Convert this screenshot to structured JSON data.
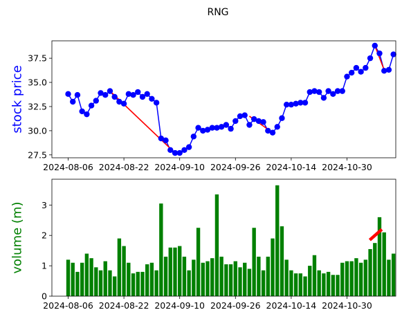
{
  "title": "RNG",
  "colors": {
    "price_line": "#0000ff",
    "price_marker": "#0000ff",
    "trend_segment": "#ff0000",
    "volume_bar": "#008000",
    "volume_trend": "#ff0000",
    "price_label": "#0000ff",
    "volume_label": "#008000"
  },
  "chart_data": [
    {
      "type": "line",
      "ylabel": "stock price",
      "ylim": [
        27.2,
        39.3
      ],
      "yticks": [
        27.5,
        30.0,
        32.5,
        35.0,
        37.5
      ],
      "ytick_labels": [
        "27.5",
        "30.0",
        "32.5",
        "35.0",
        "37.5"
      ],
      "xticks": [
        "2024-08-06",
        "2024-08-22",
        "2024-09-10",
        "2024-09-26",
        "2024-10-14",
        "2024-10-30"
      ],
      "xtick_positions": [
        0,
        12,
        24,
        36,
        48,
        60
      ],
      "xlim": [
        -3.5,
        70.5
      ],
      "series": [
        {
          "values": [
            33.8,
            33.0,
            33.7,
            32.0,
            31.7,
            32.6,
            33.1,
            33.9,
            33.7,
            34.1,
            33.5,
            33.0,
            32.8,
            33.8,
            33.7,
            34.0,
            33.5,
            33.8,
            33.3,
            32.9,
            29.2,
            29.0,
            28.0,
            27.7,
            27.7,
            28.0,
            28.3,
            29.4,
            30.3,
            30.0,
            30.1,
            30.3,
            30.3,
            30.4,
            30.6,
            30.2,
            31.0,
            31.5,
            31.6,
            30.6,
            31.2,
            31.0,
            30.9,
            30.0,
            29.8,
            30.4,
            31.3,
            32.7,
            32.7,
            32.8,
            32.9,
            32.9,
            34.0,
            34.1,
            34.0,
            33.4,
            34.1,
            33.8,
            34.1,
            34.1,
            35.6,
            36.0,
            36.5,
            36.1,
            36.5,
            37.5,
            38.8,
            38.0,
            36.2,
            36.3,
            37.9
          ]
        }
      ],
      "trend_segments": [
        {
          "from": [
            9,
            34.1
          ],
          "to": [
            23,
            27.7
          ]
        },
        {
          "from": [
            39,
            31.5
          ],
          "to": [
            44,
            29.8
          ]
        },
        {
          "from": [
            66,
            38.8
          ],
          "to": [
            68,
            36.3
          ]
        }
      ]
    },
    {
      "type": "bar",
      "ylabel": "volume (m)",
      "ylim": [
        0,
        3.85
      ],
      "yticks": [
        0,
        1,
        2,
        3
      ],
      "ytick_labels": [
        "0",
        "1",
        "2",
        "3"
      ],
      "xticks": [
        "2024-08-06",
        "2024-08-22",
        "2024-09-10",
        "2024-09-26",
        "2024-10-14",
        "2024-10-30"
      ],
      "xtick_positions": [
        0,
        12,
        24,
        36,
        48,
        60
      ],
      "xlim": [
        -3.5,
        70.5
      ],
      "values": [
        1.2,
        1.1,
        0.8,
        1.1,
        1.4,
        1.25,
        0.95,
        0.85,
        1.15,
        0.85,
        0.65,
        1.9,
        1.65,
        1.1,
        0.75,
        0.8,
        0.8,
        1.05,
        1.1,
        0.85,
        3.05,
        1.3,
        1.6,
        1.6,
        1.65,
        1.3,
        0.85,
        1.2,
        2.25,
        1.1,
        1.15,
        1.25,
        3.35,
        1.3,
        1.05,
        1.05,
        1.15,
        0.95,
        1.1,
        0.9,
        2.25,
        1.3,
        0.85,
        1.3,
        1.9,
        3.65,
        2.3,
        1.2,
        0.85,
        0.75,
        0.75,
        0.65,
        1.0,
        1.35,
        0.85,
        0.75,
        0.8,
        0.7,
        0.7,
        1.1,
        1.15,
        1.15,
        1.25,
        1.1,
        1.2,
        1.55,
        1.75,
        2.6,
        2.1,
        1.2,
        1.4
      ],
      "trend_segments": [
        {
          "from": [
            64.9,
            1.85
          ],
          "to": [
            67.5,
            2.2
          ]
        }
      ]
    }
  ]
}
